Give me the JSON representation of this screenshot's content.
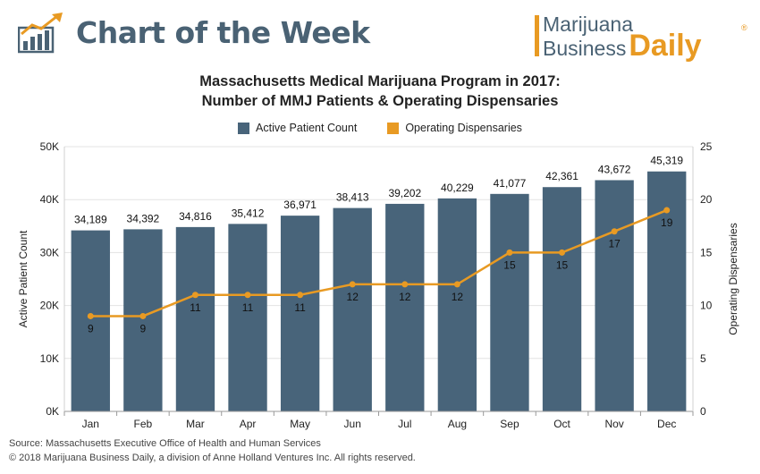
{
  "header": {
    "title": "Chart of the Week",
    "logo_icon": "bar-chart-trend-icon",
    "brand_line1": "Marijuana",
    "brand_line2a": "Business",
    "brand_line2b": "Daily",
    "brand_mark": "®"
  },
  "colors": {
    "bar": "#48647a",
    "line": "#e89a23",
    "header_text": "#4a6274"
  },
  "chart_data": {
    "type": "bar+line",
    "title": "Massachusetts Medical Marijuana Program in 2017:",
    "subtitle": "Number of MMJ Patients & Operating Dispensaries",
    "categories": [
      "Jan",
      "Feb",
      "Mar",
      "Apr",
      "May",
      "Jun",
      "Jul",
      "Aug",
      "Sep",
      "Oct",
      "Nov",
      "Dec"
    ],
    "series": [
      {
        "name": "Active Patient Count",
        "type": "bar",
        "axis": "left",
        "values": [
          34189,
          34392,
          34816,
          35412,
          36971,
          38413,
          39202,
          40229,
          41077,
          42361,
          43672,
          45319
        ],
        "labels": [
          "34,189",
          "34,392",
          "34,816",
          "35,412",
          "36,971",
          "38,413",
          "39,202",
          "40,229",
          "41,077",
          "42,361",
          "43,672",
          "45,319"
        ]
      },
      {
        "name": "Operating Dispensaries",
        "type": "line",
        "axis": "right",
        "values": [
          9,
          9,
          11,
          11,
          11,
          12,
          12,
          12,
          15,
          15,
          17,
          19
        ],
        "labels": [
          "9",
          "9",
          "11",
          "11",
          "11",
          "12",
          "12",
          "12",
          "15",
          "15",
          "17",
          "19"
        ]
      }
    ],
    "ylabel_left": "Active Patient Count",
    "ylabel_right": "Operating Dispensaries",
    "ylim_left": [
      0,
      50000
    ],
    "ylim_right": [
      0,
      25
    ],
    "yticks_left": [
      "0K",
      "10K",
      "20K",
      "30K",
      "40K",
      "50K"
    ],
    "yticks_right": [
      "0",
      "5",
      "10",
      "15",
      "20",
      "25"
    ],
    "legend_position": "top-center",
    "grid": "horizontal"
  },
  "footer": {
    "source": "Source: Massachusetts Executive Office of Health and Human Services",
    "copyright": "© 2018 Marijuana Business Daily, a division of Anne Holland Ventures Inc. All rights reserved."
  }
}
